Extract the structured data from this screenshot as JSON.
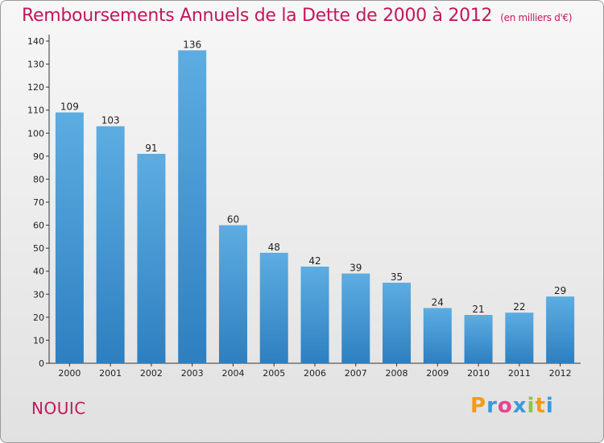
{
  "title": "Remboursements Annuels de la Dette de 2000 à 2012",
  "unit_note": "(en milliers d'€)",
  "commune": "NOUIC",
  "logo": {
    "letters": [
      "P",
      "r",
      "o",
      "x",
      "i",
      "t",
      "i"
    ],
    "colors": [
      "#f39c12",
      "#3a9ad9",
      "#e84393",
      "#3a9ad9",
      "#8bc34a",
      "#f39c12",
      "#3a9ad9"
    ]
  },
  "chart_data": {
    "type": "bar",
    "categories": [
      "2000",
      "2001",
      "2002",
      "2003",
      "2004",
      "2005",
      "2006",
      "2007",
      "2008",
      "2009",
      "2010",
      "2011",
      "2012"
    ],
    "values": [
      109,
      103,
      91,
      136,
      60,
      48,
      42,
      39,
      35,
      24,
      21,
      22,
      29
    ],
    "ylim": [
      0,
      140
    ],
    "yticks": [
      0,
      10,
      20,
      30,
      40,
      50,
      60,
      70,
      80,
      90,
      100,
      110,
      120,
      130,
      140
    ],
    "grid": false,
    "bar_color_top": "#5dade2",
    "bar_color_bottom": "#2e7fc0"
  }
}
